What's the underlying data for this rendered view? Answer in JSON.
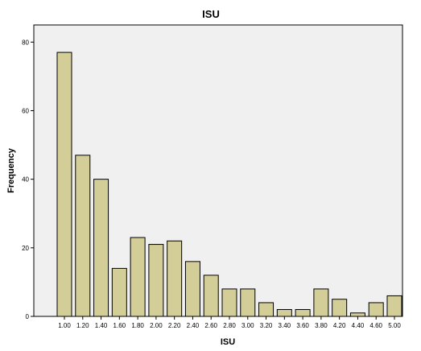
{
  "chart_data": {
    "type": "bar",
    "title": "ISU",
    "xlabel": "ISU",
    "ylabel": "Frequency",
    "categories": [
      "1.00",
      "1.20",
      "1.40",
      "1.60",
      "1.80",
      "2.00",
      "2.20",
      "2.40",
      "2.60",
      "2.80",
      "3.00",
      "3.20",
      "3.40",
      "3.60",
      "3.80",
      "4.20",
      "4.40",
      "4.60",
      "5.00"
    ],
    "values": [
      77,
      47,
      40,
      14,
      23,
      21,
      22,
      16,
      12,
      8,
      8,
      4,
      2,
      2,
      8,
      5,
      1,
      4,
      6
    ],
    "yticks": [
      "0",
      "20",
      "40",
      "60",
      "80"
    ],
    "ylim": [
      0,
      85
    ],
    "grid": false,
    "colors": {
      "plot_background": "#f0f0f0",
      "bar_fill": "#d3ce97",
      "bar_stroke": "#000000"
    }
  }
}
